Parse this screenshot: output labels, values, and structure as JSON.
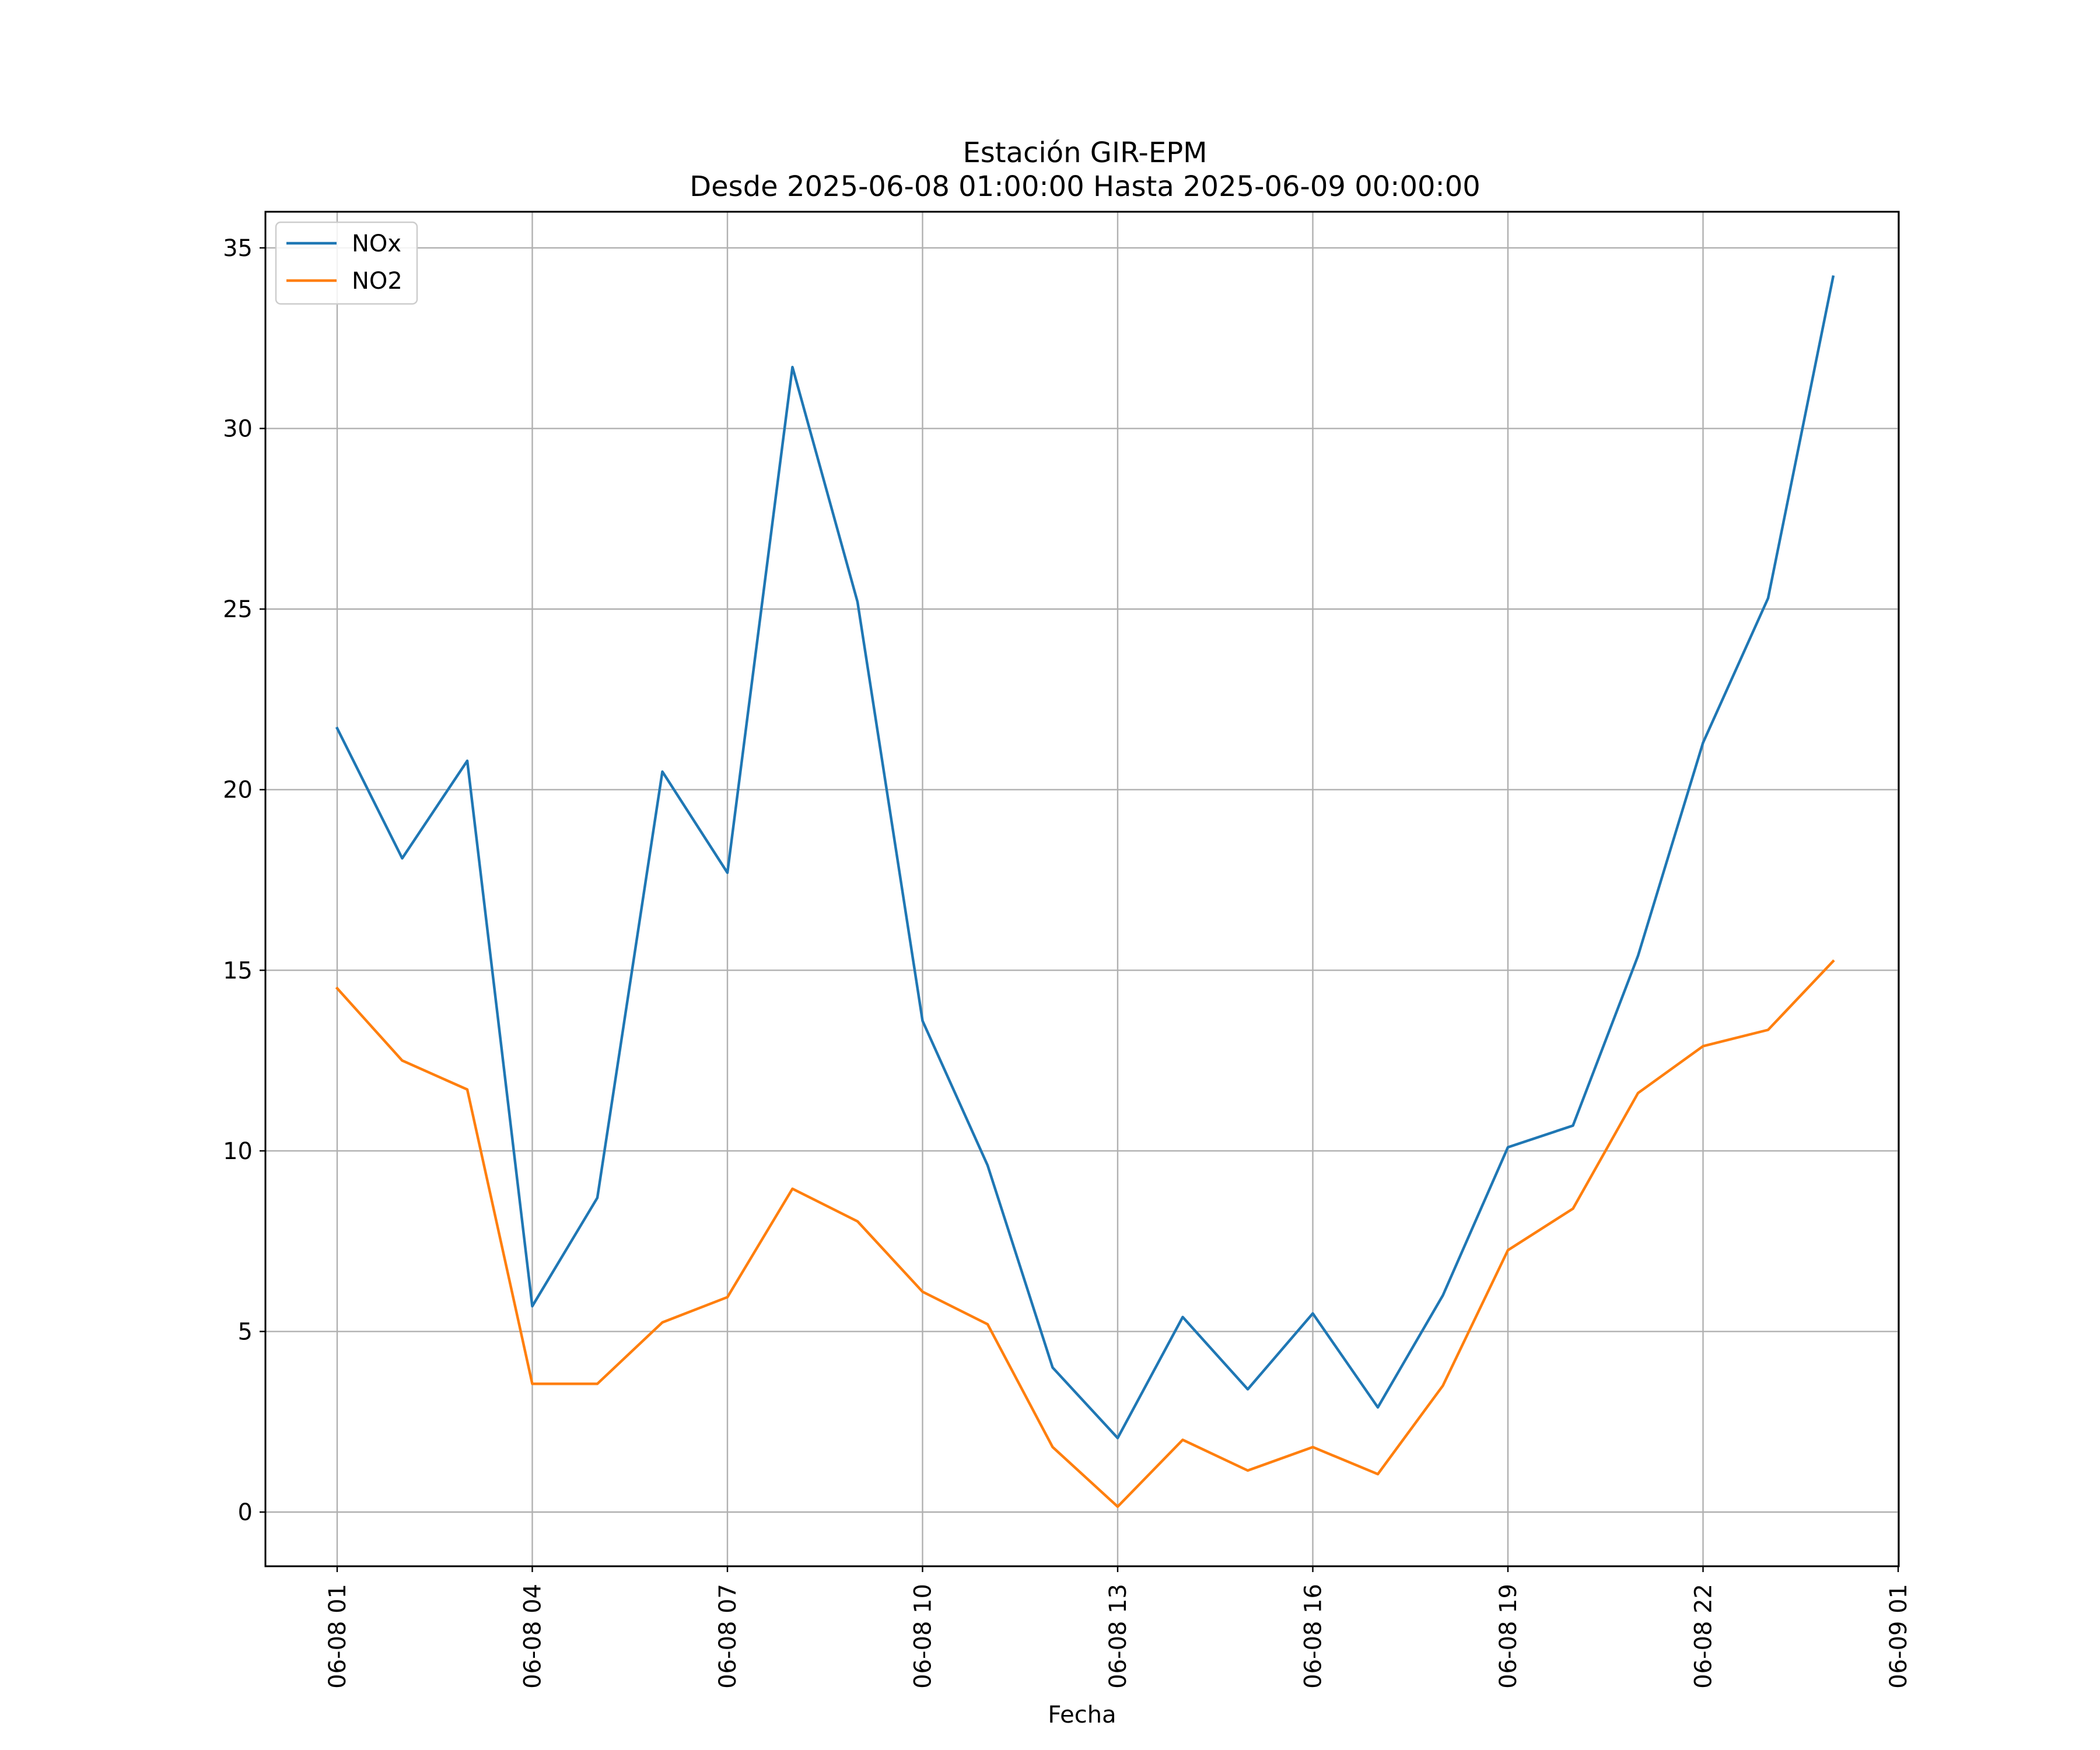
{
  "chart_data": {
    "type": "line",
    "title": "Estación GIR-EPM",
    "subtitle": "Desde 2025-06-08 01:00:00 Hasta 2025-06-09 00:00:00",
    "xlabel": "Fecha",
    "ylabel": "",
    "x": [
      "06-08 01",
      "06-08 02",
      "06-08 03",
      "06-08 04",
      "06-08 05",
      "06-08 06",
      "06-08 07",
      "06-08 08",
      "06-08 09",
      "06-08 10",
      "06-08 11",
      "06-08 12",
      "06-08 13",
      "06-08 14",
      "06-08 15",
      "06-08 16",
      "06-08 17",
      "06-08 18",
      "06-08 19",
      "06-08 20",
      "06-08 21",
      "06-08 22",
      "06-08 23",
      "06-09 00"
    ],
    "x_ticks": [
      "06-08 01",
      "06-08 04",
      "06-08 07",
      "06-08 10",
      "06-08 13",
      "06-08 16",
      "06-08 19",
      "06-08 22",
      "06-09 01"
    ],
    "y_ticks": [
      0,
      5,
      10,
      15,
      20,
      25,
      30,
      35
    ],
    "ylim": [
      -1.5,
      36
    ],
    "grid": true,
    "legend_position": "upper-left",
    "series": [
      {
        "name": "NOx",
        "color": "#1f77b4",
        "values": [
          21.7,
          18.1,
          20.8,
          5.7,
          8.7,
          20.5,
          17.7,
          31.7,
          25.2,
          13.6,
          9.6,
          4.0,
          2.05,
          5.4,
          3.4,
          5.5,
          2.9,
          6.0,
          10.1,
          10.7,
          15.4,
          21.3,
          25.3,
          34.2
        ]
      },
      {
        "name": "NO2",
        "color": "#ff7f0e",
        "values": [
          14.5,
          12.5,
          11.7,
          3.55,
          3.55,
          5.25,
          5.95,
          8.95,
          8.05,
          6.1,
          5.2,
          1.8,
          0.15,
          2.0,
          1.15,
          1.8,
          1.05,
          3.5,
          7.25,
          8.4,
          11.6,
          12.9,
          13.35,
          15.25
        ]
      }
    ]
  }
}
